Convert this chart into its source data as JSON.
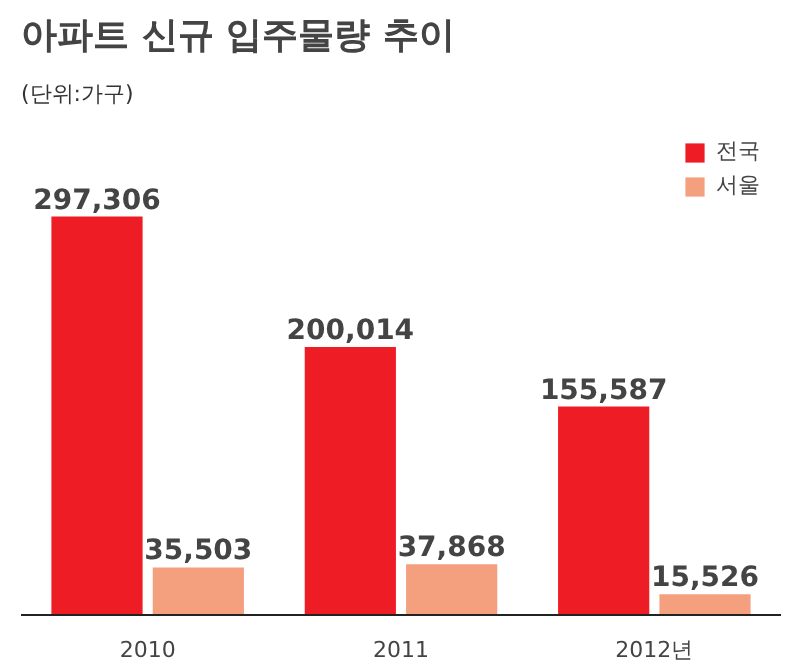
{
  "chart_data": {
    "type": "bar",
    "title": "아파트 신규 입주물량 추이",
    "subtitle": "(단위:가구)",
    "categories": [
      "2010",
      "2011",
      "2012년"
    ],
    "series": [
      {
        "name": "전국",
        "color": "#ee1c25",
        "values": [
          297306,
          200014,
          155587
        ],
        "value_labels": [
          "297,306",
          "200,014",
          "155,587"
        ]
      },
      {
        "name": "서울",
        "color": "#f4a07e",
        "values": [
          35503,
          37868,
          15526
        ],
        "value_labels": [
          "35,503",
          "37,868",
          "15,526"
        ]
      }
    ],
    "legend": "top right",
    "grid": false
  }
}
